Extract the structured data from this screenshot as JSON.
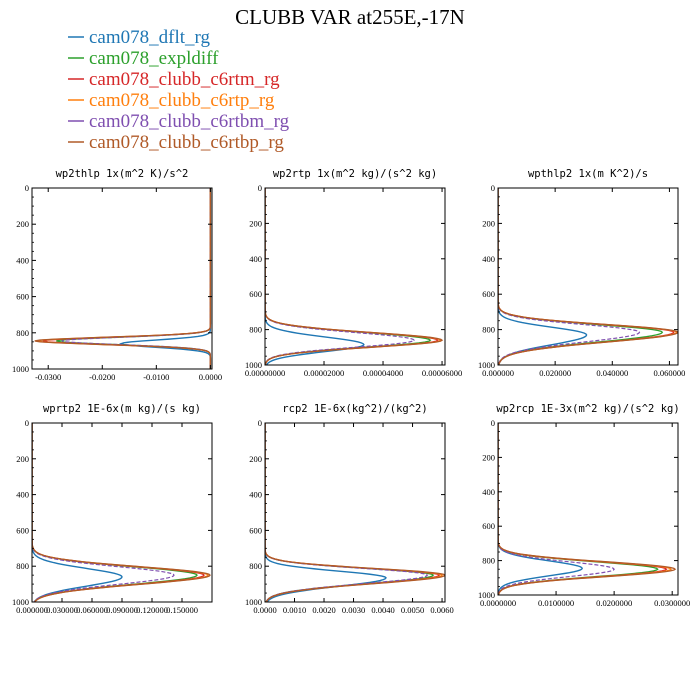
{
  "figure_title": "CLUBB VAR at255E,-17N",
  "legend": [
    {
      "name": "cam078_dflt_rg",
      "color": "#1f77b4"
    },
    {
      "name": "cam078_expldiff",
      "color": "#2ca02c"
    },
    {
      "name": "cam078_clubb_c6rtm_rg",
      "color": "#d62728"
    },
    {
      "name": "cam078_clubb_c6rtp_rg",
      "color": "#ff7f0e"
    },
    {
      "name": "cam078_clubb_c6rtbm_rg",
      "color": "#7f4fb0"
    },
    {
      "name": "cam078_clubb_c6rtbp_rg",
      "color": "#b05a28"
    }
  ],
  "chart_data": [
    {
      "type": "line",
      "title": "wp2thlp  1x(m^2 K)/s^2",
      "xlim": [
        -0.033,
        0.0003
      ],
      "ylim": [
        1000,
        0
      ],
      "xticks": [
        -0.03,
        -0.02,
        -0.01,
        0.0
      ],
      "xtick_labels": [
        "-0.0300",
        "-0.0200",
        "-0.0100",
        "0.0000"
      ],
      "yticks": [
        0,
        200,
        400,
        600,
        800,
        1000
      ],
      "ytick_labels": [
        "0",
        "200",
        "400",
        "600",
        "800",
        "1000"
      ],
      "profile": {
        "shape": "spike",
        "y_peak": 845,
        "width_above": 70,
        "width_below": 70
      },
      "series": [
        {
          "name": "cam078_dflt_rg",
          "peak": -0.0165,
          "y_peak": 860
        },
        {
          "name": "cam078_expldiff",
          "peak": -0.0285
        },
        {
          "name": "cam078_clubb_c6rtm_rg",
          "peak": -0.031
        },
        {
          "name": "cam078_clubb_c6rtp_rg",
          "peak": -0.032
        },
        {
          "name": "cam078_clubb_c6rtbm_rg",
          "peak": -0.0275
        },
        {
          "name": "cam078_clubb_c6rtbp_rg",
          "peak": -0.0325
        }
      ]
    },
    {
      "type": "line",
      "title": "wp2rtp  1x(m^2 kg)/(s^2 kg)",
      "xlim": [
        0,
        6.1e-05
      ],
      "ylim": [
        1000,
        0
      ],
      "xticks": [
        0,
        2e-05,
        4e-05,
        6e-05
      ],
      "xtick_labels": [
        "0.00000000",
        "0.00002000",
        "0.00004000",
        "0.00006000"
      ],
      "yticks": [
        0,
        200,
        400,
        600,
        800,
        1000
      ],
      "ytick_labels": [
        "0",
        "200",
        "400",
        "600",
        "800",
        "1000"
      ],
      "profile": {
        "shape": "bump",
        "y_peak": 860,
        "width_above": 110,
        "width_below": 100
      },
      "series": [
        {
          "name": "cam078_dflt_rg",
          "peak": 3.35e-05,
          "y_peak": 885
        },
        {
          "name": "cam078_expldiff",
          "peak": 5.6e-05
        },
        {
          "name": "cam078_clubb_c6rtm_rg",
          "peak": 5.85e-05
        },
        {
          "name": "cam078_clubb_c6rtp_rg",
          "peak": 5.95e-05
        },
        {
          "name": "cam078_clubb_c6rtbm_rg",
          "peak": 5.05e-05
        },
        {
          "name": "cam078_clubb_c6rtbp_rg",
          "peak": 6e-05
        }
      ]
    },
    {
      "type": "line",
      "title": "wpthlp2  1x(m K^2)/s",
      "xlim": [
        0,
        0.063
      ],
      "ylim": [
        1000,
        0
      ],
      "xticks": [
        0,
        0.02,
        0.04,
        0.06
      ],
      "xtick_labels": [
        "0.000000",
        "0.020000",
        "0.040000",
        "0.060000"
      ],
      "yticks": [
        0,
        200,
        400,
        600,
        800,
        1000
      ],
      "ytick_labels": [
        "0",
        "200",
        "400",
        "600",
        "800",
        "1000"
      ],
      "profile": {
        "shape": "bump",
        "y_peak": 815,
        "width_above": 110,
        "width_below": 140
      },
      "series": [
        {
          "name": "cam078_dflt_rg",
          "peak": 0.031,
          "y_peak": 830
        },
        {
          "name": "cam078_expldiff",
          "peak": 0.0575
        },
        {
          "name": "cam078_clubb_c6rtm_rg",
          "peak": 0.0615
        },
        {
          "name": "cam078_clubb_c6rtp_rg",
          "peak": 0.0625
        },
        {
          "name": "cam078_clubb_c6rtbm_rg",
          "peak": 0.0495
        },
        {
          "name": "cam078_clubb_c6rtbp_rg",
          "peak": 0.063
        }
      ]
    },
    {
      "type": "line",
      "title": "wprtp2  1E-6x(m kg)/(s kg)",
      "xlim": [
        0,
        0.18
      ],
      "ylim": [
        1000,
        0
      ],
      "xticks": [
        0,
        0.03,
        0.06,
        0.09,
        0.12,
        0.15
      ],
      "xtick_labels": [
        "0.000000",
        "0.030000",
        "0.060000",
        "0.090000",
        "0.120000",
        "0.150000"
      ],
      "yticks": [
        0,
        200,
        400,
        600,
        800,
        1000
      ],
      "ytick_labels": [
        "0",
        "200",
        "400",
        "600",
        "800",
        "1000"
      ],
      "profile": {
        "shape": "bump",
        "y_peak": 850,
        "width_above": 120,
        "width_below": 130
      },
      "series": [
        {
          "name": "cam078_dflt_rg",
          "peak": 0.09,
          "y_peak": 860
        },
        {
          "name": "cam078_expldiff",
          "peak": 0.165
        },
        {
          "name": "cam078_clubb_c6rtm_rg",
          "peak": 0.172
        },
        {
          "name": "cam078_clubb_c6rtp_rg",
          "peak": 0.176
        },
        {
          "name": "cam078_clubb_c6rtbm_rg",
          "peak": 0.142
        },
        {
          "name": "cam078_clubb_c6rtbp_rg",
          "peak": 0.178
        }
      ]
    },
    {
      "type": "line",
      "title": "rcp2  1E-6x(kg^2)/(kg^2)",
      "xlim": [
        0,
        0.0061
      ],
      "ylim": [
        1000,
        0
      ],
      "xticks": [
        0,
        0.001,
        0.002,
        0.003,
        0.004,
        0.005,
        0.006
      ],
      "xtick_labels": [
        "0.0000",
        "0.0010",
        "0.0020",
        "0.0030",
        "0.0040",
        "0.0050",
        "0.0060"
      ],
      "yticks": [
        0,
        200,
        400,
        600,
        800,
        1000
      ],
      "ytick_labels": [
        "0",
        "200",
        "400",
        "600",
        "800",
        "1000"
      ],
      "profile": {
        "shape": "bump",
        "y_peak": 850,
        "width_above": 95,
        "width_below": 120
      },
      "series": [
        {
          "name": "cam078_dflt_rg",
          "peak": 0.0041,
          "y_peak": 865
        },
        {
          "name": "cam078_expldiff",
          "peak": 0.0057
        },
        {
          "name": "cam078_clubb_c6rtm_rg",
          "peak": 0.0059
        },
        {
          "name": "cam078_clubb_c6rtp_rg",
          "peak": 0.006
        },
        {
          "name": "cam078_clubb_c6rtbm_rg",
          "peak": 0.0055
        },
        {
          "name": "cam078_clubb_c6rtbp_rg",
          "peak": 0.0061
        }
      ]
    },
    {
      "type": "line",
      "title": "wp2rcp  1E-3x(m^2 kg)/(s^2 kg)",
      "xlim": [
        0,
        0.031
      ],
      "ylim": [
        1000,
        0
      ],
      "xticks": [
        0,
        0.01,
        0.02,
        0.03
      ],
      "xtick_labels": [
        "0.0000000",
        "0.0100000",
        "0.0200000",
        "0.0300000"
      ],
      "yticks": [
        0,
        200,
        400,
        600,
        800,
        1000
      ],
      "ytick_labels": [
        "0",
        "200",
        "400",
        "600",
        "800",
        "1000"
      ],
      "profile": {
        "shape": "bump",
        "y_peak": 850,
        "width_above": 110,
        "width_below": 110
      },
      "series": [
        {
          "name": "cam078_dflt_rg",
          "peak": 0.0145,
          "y_peak": 845
        },
        {
          "name": "cam078_expldiff",
          "peak": 0.0275
        },
        {
          "name": "cam078_clubb_c6rtm_rg",
          "peak": 0.029
        },
        {
          "name": "cam078_clubb_c6rtp_rg",
          "peak": 0.0298
        },
        {
          "name": "cam078_clubb_c6rtbm_rg",
          "peak": 0.02
        },
        {
          "name": "cam078_clubb_c6rtbp_rg",
          "peak": 0.0305
        }
      ]
    }
  ]
}
